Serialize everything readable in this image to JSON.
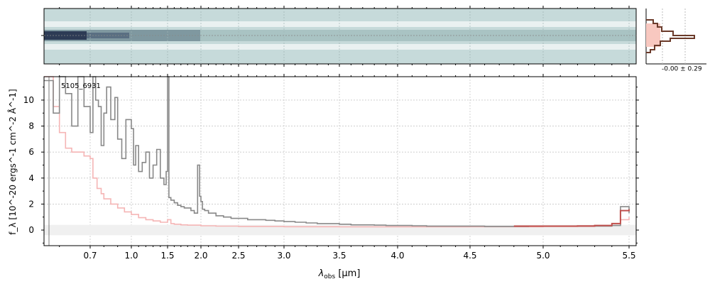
{
  "chart_data": {
    "type": "line",
    "annotation": "5105_6931",
    "xlabel_main": "λ",
    "xlabel_sub": "obs",
    "xlabel_unit": " [μm]",
    "ylabel": "f_λ [10^-20 ergs^-1 cm^-2 Å^-1]",
    "xticks": [
      "0.7",
      "1.0",
      "1.5",
      "2.0",
      "2.5",
      "3.0",
      "3.5",
      "4.0",
      "4.5",
      "5.0",
      "5.5"
    ],
    "xtick_values": [
      0.7,
      1.0,
      1.5,
      2.0,
      2.5,
      3.0,
      3.5,
      4.0,
      4.5,
      5.0,
      5.5
    ],
    "yticks": [
      "0",
      "2",
      "4",
      "6",
      "8",
      "10"
    ],
    "ylim": [
      -1.2,
      11.8
    ],
    "grid": true,
    "series": [
      {
        "role": "spectrum",
        "color": "#888888",
        "x": [
          0.55,
          0.58,
          0.6,
          0.62,
          0.64,
          0.66,
          0.68,
          0.7,
          0.72,
          0.74,
          0.76,
          0.78,
          0.8,
          0.82,
          0.85,
          0.88,
          0.9,
          0.93,
          0.96,
          1.0,
          1.03,
          1.06,
          1.1,
          1.15,
          1.2,
          1.25,
          1.3,
          1.35,
          1.4,
          1.45,
          1.48,
          1.5,
          1.52,
          1.55,
          1.6,
          1.65,
          1.7,
          1.75,
          1.8,
          1.85,
          1.9,
          1.95,
          1.98,
          2.0,
          2.02,
          2.05,
          2.1,
          2.2,
          2.3,
          2.4,
          2.5,
          2.6,
          2.7,
          2.8,
          2.9,
          3.0,
          3.1,
          3.2,
          3.3,
          3.4,
          3.5,
          3.6,
          3.7,
          3.8,
          3.9,
          4.0,
          4.1,
          4.2,
          4.3,
          4.4,
          4.5,
          4.6,
          4.7,
          4.8,
          4.9,
          5.0,
          5.1,
          5.2,
          5.3,
          5.4,
          5.45,
          5.5
        ],
        "y": [
          11.5,
          9.0,
          11.8,
          10.5,
          8.0,
          11.8,
          9.5,
          7.5,
          11.8,
          10.0,
          9.5,
          6.5,
          9.0,
          11.0,
          8.5,
          10.2,
          7.0,
          5.5,
          8.5,
          7.8,
          5.0,
          6.5,
          4.5,
          5.2,
          6.0,
          4.0,
          5.0,
          6.2,
          4.0,
          3.5,
          4.5,
          11.8,
          2.5,
          2.3,
          2.1,
          1.9,
          1.8,
          1.7,
          1.7,
          1.5,
          1.3,
          5.0,
          2.6,
          2.2,
          1.6,
          1.5,
          1.3,
          1.1,
          1.0,
          0.9,
          0.9,
          0.8,
          0.8,
          0.75,
          0.7,
          0.65,
          0.6,
          0.55,
          0.5,
          0.5,
          0.45,
          0.4,
          0.4,
          0.38,
          0.35,
          0.35,
          0.33,
          0.3,
          0.3,
          0.3,
          0.3,
          0.28,
          0.28,
          0.28,
          0.3,
          0.3,
          0.3,
          0.3,
          0.3,
          0.35,
          1.8,
          1.3
        ]
      },
      {
        "role": "uncertainty",
        "color": "#f5b5b5",
        "x": [
          0.55,
          0.58,
          0.6,
          0.62,
          0.64,
          0.66,
          0.68,
          0.7,
          0.72,
          0.75,
          0.78,
          0.8,
          0.85,
          0.9,
          0.95,
          1.0,
          1.1,
          1.2,
          1.3,
          1.4,
          1.5,
          1.55,
          1.6,
          1.7,
          1.8,
          2.0,
          2.2,
          2.5,
          3.0,
          3.5,
          4.0,
          4.5,
          5.0,
          5.3,
          5.4,
          5.45,
          5.5
        ],
        "y": [
          11.8,
          9.5,
          7.5,
          6.3,
          6.0,
          6.0,
          5.7,
          5.5,
          4.0,
          3.2,
          2.8,
          2.4,
          2.0,
          1.7,
          1.4,
          1.2,
          0.95,
          0.8,
          0.7,
          0.6,
          0.8,
          0.5,
          0.45,
          0.4,
          0.38,
          0.33,
          0.3,
          0.28,
          0.26,
          0.25,
          0.25,
          0.26,
          0.28,
          0.35,
          0.5,
          0.8,
          1.0
        ]
      },
      {
        "role": "model",
        "color": "#c0504d",
        "x": [
          4.8,
          5.0,
          5.2,
          5.3,
          5.4,
          5.45,
          5.5
        ],
        "y": [
          0.3,
          0.3,
          0.32,
          0.35,
          0.5,
          1.5,
          1.6
        ]
      }
    ],
    "inset": {
      "label": "-0.00 ± 0.29",
      "line_color": "#6b3a2a",
      "fill_color": "#f8c8c0"
    }
  }
}
